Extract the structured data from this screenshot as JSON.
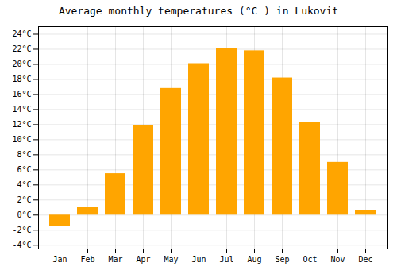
{
  "chart_data": {
    "type": "bar",
    "title": "Average monthly temperatures (°C ) in Lukovit",
    "categories": [
      "Jan",
      "Feb",
      "Mar",
      "Apr",
      "May",
      "Jun",
      "Jul",
      "Aug",
      "Sep",
      "Oct",
      "Nov",
      "Dec"
    ],
    "values": [
      -1.5,
      1.0,
      5.5,
      11.9,
      16.8,
      20.1,
      22.1,
      21.8,
      18.2,
      12.3,
      7.0,
      0.6
    ],
    "color": "#FFA500",
    "ylim": [
      -4.5,
      25
    ],
    "yticks": [
      {
        "value": -4,
        "label": "-4°C"
      },
      {
        "value": -2,
        "label": "-2°C"
      },
      {
        "value": 0,
        "label": "0°C"
      },
      {
        "value": 2,
        "label": "2°C"
      },
      {
        "value": 4,
        "label": "4°C"
      },
      {
        "value": 6,
        "label": "6°C"
      },
      {
        "value": 8,
        "label": "8°C"
      },
      {
        "value": 10,
        "label": "10°C"
      },
      {
        "value": 12,
        "label": "12°C"
      },
      {
        "value": 14,
        "label": "14°C"
      },
      {
        "value": 16,
        "label": "16°C"
      },
      {
        "value": 18,
        "label": "18°C"
      },
      {
        "value": 20,
        "label": "20°C"
      },
      {
        "value": 22,
        "label": "22°C"
      },
      {
        "value": 24,
        "label": "24°C"
      }
    ],
    "grid": true
  }
}
